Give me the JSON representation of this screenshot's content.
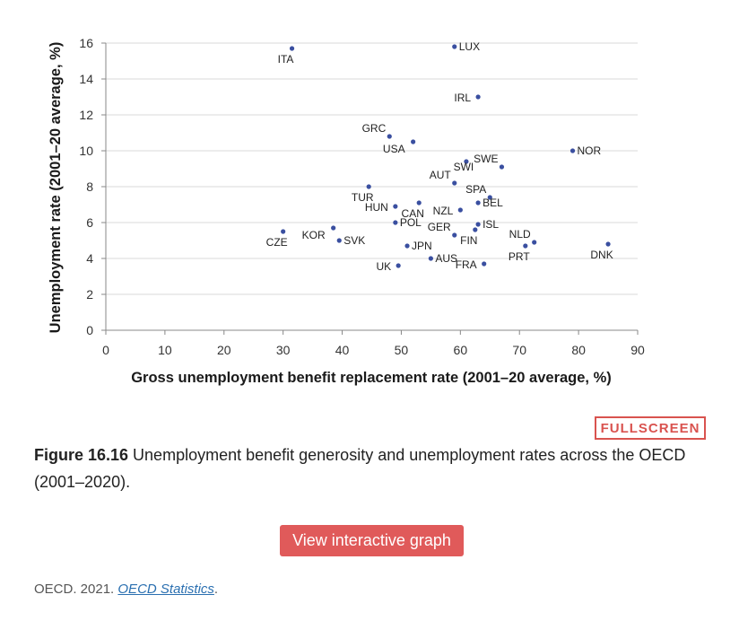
{
  "chart_data": {
    "type": "scatter",
    "xlabel": "Gross unemployment benefit replacement rate (2001–20 average, %)",
    "ylabel": "Unemployment rate (2001–20 average, %)",
    "xlim": [
      0,
      90
    ],
    "ylim": [
      0,
      16
    ],
    "xticks": [
      0,
      10,
      20,
      30,
      40,
      50,
      60,
      70,
      80,
      90
    ],
    "yticks": [
      0,
      2,
      4,
      6,
      8,
      10,
      12,
      14,
      16
    ],
    "grid": "horizontal",
    "point_color": "#3a4fa0",
    "points": [
      {
        "label": "ITA",
        "x": 31.5,
        "y": 15.7,
        "lpos": "below"
      },
      {
        "label": "LUX",
        "x": 59.0,
        "y": 15.8,
        "lpos": "right"
      },
      {
        "label": "IRL",
        "x": 63.0,
        "y": 13.0,
        "lpos": "left"
      },
      {
        "label": "GRC",
        "x": 48.0,
        "y": 10.8,
        "lpos": "upleft"
      },
      {
        "label": "USA",
        "x": 52.0,
        "y": 10.5,
        "lpos": "belowleft"
      },
      {
        "label": "NOR",
        "x": 79.0,
        "y": 10.0,
        "lpos": "right"
      },
      {
        "label": "SWE",
        "x": 67.0,
        "y": 9.1,
        "lpos": "upleft"
      },
      {
        "label": "SWI",
        "x": 61.0,
        "y": 9.4,
        "lpos": "belowcenter"
      },
      {
        "label": "AUT",
        "x": 59.0,
        "y": 8.2,
        "lpos": "upleft"
      },
      {
        "label": "TUR",
        "x": 44.5,
        "y": 8.0,
        "lpos": "below"
      },
      {
        "label": "SPA",
        "x": 65.0,
        "y": 7.4,
        "lpos": "upleft"
      },
      {
        "label": "HUN",
        "x": 49.0,
        "y": 6.9,
        "lpos": "left"
      },
      {
        "label": "CAN",
        "x": 53.0,
        "y": 7.1,
        "lpos": "below"
      },
      {
        "label": "BEL",
        "x": 63.0,
        "y": 7.1,
        "lpos": "right"
      },
      {
        "label": "NZL",
        "x": 60.0,
        "y": 6.7,
        "lpos": "left"
      },
      {
        "label": "POL",
        "x": 49.0,
        "y": 6.0,
        "lpos": "right"
      },
      {
        "label": "ISL",
        "x": 63.0,
        "y": 5.9,
        "lpos": "right"
      },
      {
        "label": "GER",
        "x": 59.0,
        "y": 5.3,
        "lpos": "upleft"
      },
      {
        "label": "FIN",
        "x": 62.5,
        "y": 5.6,
        "lpos": "below"
      },
      {
        "label": "CZE",
        "x": 30.0,
        "y": 5.5,
        "lpos": "below"
      },
      {
        "label": "KOR",
        "x": 38.5,
        "y": 5.7,
        "lpos": "belowleft"
      },
      {
        "label": "SVK",
        "x": 39.5,
        "y": 5.0,
        "lpos": "right"
      },
      {
        "label": "JPN",
        "x": 51.0,
        "y": 4.7,
        "lpos": "right"
      },
      {
        "label": "NLD",
        "x": 72.5,
        "y": 4.9,
        "lpos": "upleft"
      },
      {
        "label": "PRT",
        "x": 71.0,
        "y": 4.7,
        "lpos": "below"
      },
      {
        "label": "DNK",
        "x": 85.0,
        "y": 4.8,
        "lpos": "below"
      },
      {
        "label": "AUS",
        "x": 55.0,
        "y": 4.0,
        "lpos": "right"
      },
      {
        "label": "FRA",
        "x": 64.0,
        "y": 3.7,
        "lpos": "left"
      },
      {
        "label": "UK",
        "x": 49.5,
        "y": 3.6,
        "lpos": "left"
      }
    ]
  },
  "fullscreen_label": "FULLSCREEN",
  "caption": {
    "figure_label": "Figure 16.16",
    "text": " Unemployment benefit generosity and unemployment rates across the OECD (2001–2020)."
  },
  "interactive_button_label": "View interactive graph",
  "source": {
    "prefix": "OECD. 2021. ",
    "link_text": "OECD Statistics",
    "suffix": "."
  }
}
